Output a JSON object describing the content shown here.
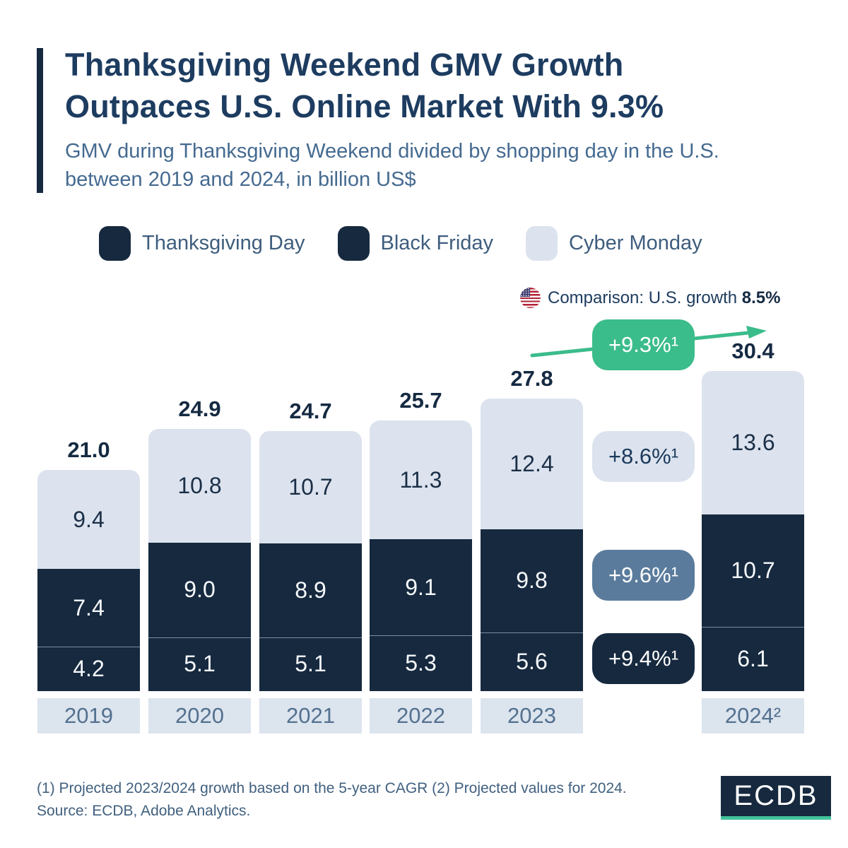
{
  "header": {
    "title_line1": "Thanksgiving Weekend GMV Growth",
    "title_line2": "Outpaces U.S. Online Market With 9.3%",
    "subtitle_line1": "GMV during Thanksgiving Weekend divided by shopping day in the U.S.",
    "subtitle_line2": "between 2019 and 2024, in billion US$"
  },
  "legend": {
    "items": [
      {
        "label": "Thanksgiving Day",
        "color": "navy"
      },
      {
        "label": "Black Friday",
        "color": "navy"
      },
      {
        "label": "Cyber Monday",
        "color": "light"
      }
    ]
  },
  "comparison": {
    "flag_icon": "us-flag-icon",
    "text": "Comparison: U.S. growth",
    "value": "8.5%"
  },
  "chart_data": {
    "type": "bar",
    "subtype": "stacked",
    "unit": "billion US$",
    "categories": [
      "2019",
      "2020",
      "2021",
      "2022",
      "2023",
      "2024²"
    ],
    "series": [
      {
        "name": "Thanksgiving Day",
        "color": "navy",
        "values": [
          4.2,
          5.1,
          5.1,
          5.3,
          5.6,
          6.1
        ]
      },
      {
        "name": "Black Friday",
        "color": "navy",
        "values": [
          7.4,
          9.0,
          8.9,
          9.1,
          9.8,
          10.7
        ]
      },
      {
        "name": "Cyber Monday",
        "color": "light",
        "values": [
          9.4,
          10.8,
          10.7,
          11.3,
          12.4,
          13.6
        ]
      }
    ],
    "totals": [
      21.0,
      24.9,
      24.7,
      25.7,
      27.8,
      30.4
    ],
    "growth_badges": [
      {
        "label": "+9.3%¹",
        "style": "green",
        "refers_to": "Total GMV growth 2023 to 2024"
      },
      {
        "label": "+8.6%¹",
        "style": "light",
        "refers_to": "Cyber Monday"
      },
      {
        "label": "+9.6%¹",
        "style": "slate",
        "refers_to": "Black Friday"
      },
      {
        "label": "+9.4%¹",
        "style": "navy",
        "refers_to": "Thanksgiving Day"
      }
    ],
    "legend_position": "top",
    "grid": false,
    "ylim": [
      0,
      30.4
    ]
  },
  "footer": {
    "note1": "(1) Projected 2023/2024 growth based on the 5-year CAGR (2) Projected values for 2024.",
    "note2": "Source: ECDB, Adobe Analytics.",
    "logo_text": "ECDB"
  },
  "colors": {
    "navy": "#16293f",
    "light": "#dce3ee",
    "slate": "#5a7b9c",
    "green": "#3bbc8b",
    "navy_text": "#1b2f47",
    "white_text": "#f7fafd"
  }
}
